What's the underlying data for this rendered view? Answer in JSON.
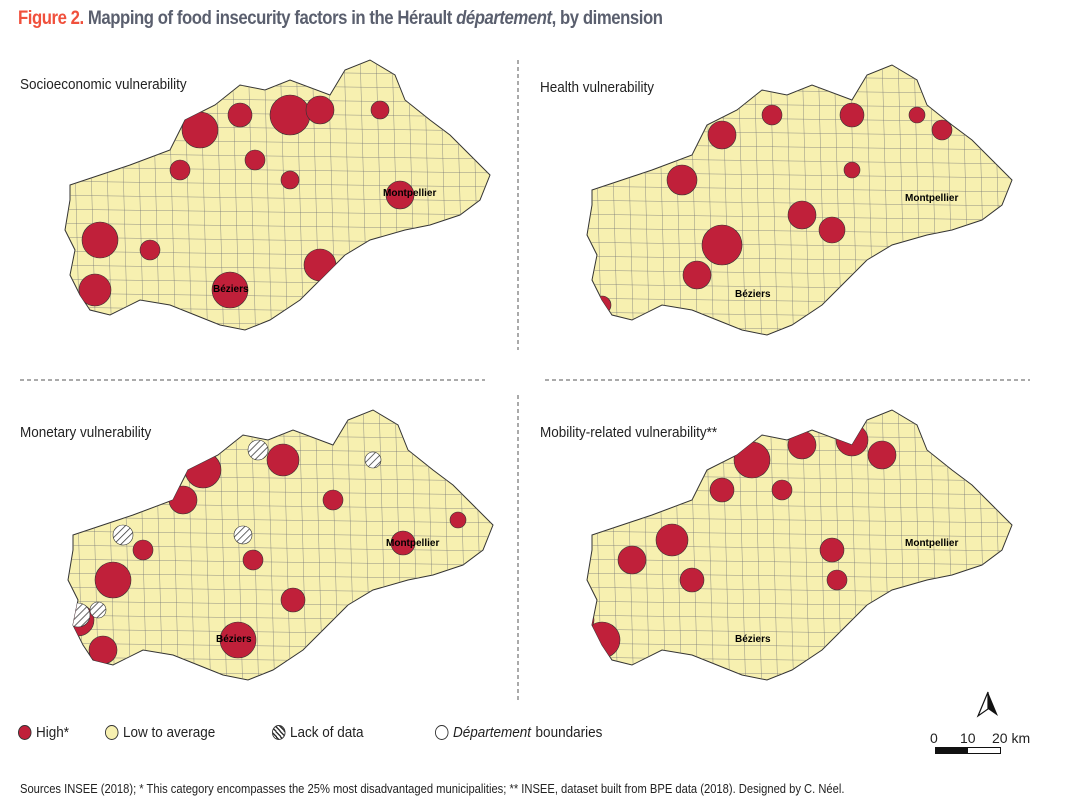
{
  "title": {
    "figure": "Figure 2.",
    "text": "Mapping of food insecurity factors in the Hérault ",
    "italic": "département",
    "suffix": ", by dimension"
  },
  "maps": [
    {
      "title": "Socioeconomic vulnerability"
    },
    {
      "title": "Health vulnerability"
    },
    {
      "title": "Monetary vulnerability"
    },
    {
      "title": "Mobility-related vulnerability**"
    }
  ],
  "cities": {
    "montpellier": "Montpellier",
    "beziers": "Béziers"
  },
  "legend": {
    "high": "High*",
    "low": "Low to average",
    "nodata": "Lack of data",
    "boundaries_italic": "Département",
    "boundaries": " boundaries"
  },
  "scale": {
    "labels": [
      "0",
      "10",
      "20 km"
    ]
  },
  "north_icon": "north-arrow-icon",
  "colors": {
    "high": "#c0203a",
    "low": "#f7f0b0",
    "title_accent": "#f0503c",
    "title": "#5a5f6e"
  },
  "source": "Sources INSEE (2018); * This category encompasses the 25% most disadvantaged municipalities; ** INSEE, dataset built from BPE data (2018). Designed by C. Néel."
}
